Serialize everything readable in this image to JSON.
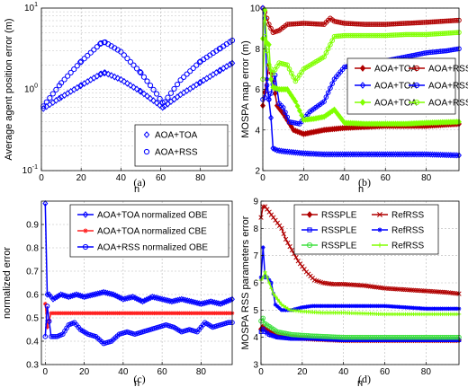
{
  "figure": {
    "captions": [
      "(a)",
      "(b)",
      "(c)",
      "(d)"
    ]
  },
  "colors": {
    "blue": "#0000ff",
    "dark_red": "#b00000",
    "red": "#ff2020",
    "light_green": "#80ff00",
    "green": "#40e040",
    "grid": "#b0b0b0"
  },
  "chart_data": [
    {
      "id": "a",
      "type": "scatter",
      "xlabel": "n",
      "ylabel": "Average agent position error (m)",
      "xlim": [
        0,
        96
      ],
      "ylim": [
        0.1,
        10
      ],
      "yscale": "log",
      "xticks": [
        0,
        20,
        40,
        60,
        80
      ],
      "yticks": [
        {
          "v": 0.1,
          "base": "10",
          "exp": "-1"
        },
        {
          "v": 1,
          "base": "10",
          "exp": "0"
        },
        {
          "v": 10,
          "base": "10",
          "exp": "1"
        }
      ],
      "grid": true,
      "legend_position": "bottom-right",
      "series": [
        {
          "name": "AOA+TOA",
          "marker": "diamond",
          "color": "#0000ff",
          "x": [
            1,
            10,
            20,
            30,
            32,
            40,
            50,
            58,
            61,
            62,
            70,
            80,
            90,
            96
          ],
          "y": [
            0.58,
            0.8,
            1.12,
            1.55,
            1.6,
            1.32,
            0.94,
            0.68,
            0.6,
            0.62,
            0.86,
            1.22,
            1.72,
            2.1
          ]
        },
        {
          "name": "AOA+RSS",
          "marker": "circle",
          "color": "#0000ff",
          "x": [
            1,
            10,
            20,
            30,
            32,
            40,
            50,
            58,
            61,
            62,
            70,
            80,
            90,
            96
          ],
          "y": [
            0.62,
            1.2,
            2.2,
            3.7,
            3.8,
            2.9,
            1.6,
            0.88,
            0.68,
            0.7,
            1.3,
            2.2,
            3.2,
            4.0
          ]
        }
      ]
    },
    {
      "id": "b",
      "type": "line",
      "xlabel": "n",
      "ylabel": "MOSPA map error (m)",
      "xlim": [
        0,
        96
      ],
      "ylim": [
        2,
        10
      ],
      "xticks": [
        0,
        20,
        40,
        60,
        80
      ],
      "yticks": [
        2,
        4,
        6,
        8,
        10
      ],
      "grid": true,
      "legend_position": "center-right",
      "legend_columns": 2,
      "series": [
        {
          "name": "AOA+TOA",
          "marker": "diamond",
          "color": "#b00000",
          "x": [
            0,
            2,
            3,
            5,
            7,
            10,
            15,
            20,
            30,
            40,
            50,
            60,
            70,
            80,
            96
          ],
          "y": [
            5.2,
            6.5,
            7.2,
            6.4,
            5.2,
            4.8,
            4.0,
            3.8,
            4.0,
            4.1,
            4.15,
            4.2,
            4.2,
            4.2,
            4.3
          ]
        },
        {
          "name": "AOA+RSS",
          "marker": "circle",
          "color": "#b00000",
          "x": [
            0,
            1,
            3,
            5,
            8,
            12,
            20,
            30,
            33,
            35,
            40,
            50,
            60,
            70,
            80,
            96
          ],
          "y": [
            10,
            9.8,
            9.2,
            8.8,
            8.9,
            9.2,
            9.25,
            9.2,
            9.5,
            9.35,
            9.25,
            9.2,
            9.2,
            9.25,
            9.3,
            9.4
          ]
        },
        {
          "name": "AOA+TOA",
          "marker": "diamond",
          "color": "#0000ff",
          "x": [
            0,
            1,
            2,
            3,
            4,
            5,
            7,
            10,
            15,
            20,
            30,
            40,
            50,
            60,
            70,
            80,
            96
          ],
          "y": [
            10,
            9.5,
            6.5,
            5.5,
            4.6,
            3.1,
            3.0,
            2.95,
            2.9,
            2.85,
            2.8,
            2.8,
            2.8,
            2.8,
            2.8,
            2.8,
            2.75
          ]
        },
        {
          "name": "AOA+RSS",
          "marker": "circle",
          "color": "#0000ff",
          "x": [
            0,
            1,
            2,
            3,
            4,
            6,
            8,
            10,
            13,
            18,
            23,
            30,
            35,
            40,
            50,
            60,
            70,
            80,
            90,
            96
          ],
          "y": [
            5.5,
            5.6,
            6.2,
            5.5,
            5.8,
            6.7,
            5.3,
            5.1,
            4.4,
            4.3,
            4.9,
            5.4,
            6.5,
            7.1,
            7.3,
            7.4,
            7.6,
            7.8,
            7.9,
            8.0
          ]
        },
        {
          "name": "AOA+TOA",
          "marker": "diamond",
          "color": "#80ff00",
          "x": [
            0,
            1,
            2,
            3,
            4,
            5,
            8,
            12,
            16,
            20,
            25,
            30,
            35,
            40,
            50,
            60,
            70,
            80,
            96
          ],
          "y": [
            8.5,
            9.9,
            8.3,
            8.2,
            6.5,
            6.1,
            6.0,
            6.0,
            5.4,
            4.5,
            4.55,
            4.65,
            5.0,
            4.35,
            4.3,
            4.3,
            4.3,
            4.35,
            4.4
          ]
        },
        {
          "name": "AOA+RSS",
          "marker": "circle",
          "color": "#80ff00",
          "x": [
            0,
            1,
            2,
            3,
            5,
            8,
            12,
            16,
            20,
            25,
            30,
            35,
            40,
            50,
            60,
            70,
            80,
            96
          ],
          "y": [
            6.5,
            8.6,
            7.9,
            7.2,
            6.8,
            7.3,
            7.2,
            6.4,
            7.0,
            7.3,
            7.6,
            8.6,
            8.65,
            8.65,
            8.65,
            8.7,
            8.7,
            8.8
          ]
        }
      ]
    },
    {
      "id": "c",
      "type": "line",
      "xlabel": "n",
      "ylabel": "normalized  error",
      "xlim": [
        -2,
        96
      ],
      "ylim": [
        0.3,
        1.0
      ],
      "xticks": [
        0,
        20,
        40,
        60,
        80
      ],
      "yticks": [
        0.3,
        0.4,
        0.5,
        0.6,
        0.7,
        0.8,
        0.9
      ],
      "grid": true,
      "legend_position": "top-center",
      "series": [
        {
          "name": "AOA+TOA normalized OBE",
          "marker": "diamond",
          "color": "#0000ff",
          "x": [
            0,
            1,
            2,
            4,
            8,
            12,
            16,
            20,
            25,
            30,
            35,
            40,
            45,
            50,
            55,
            60,
            65,
            70,
            75,
            80,
            85,
            90,
            96
          ],
          "y": [
            0.99,
            0.6,
            0.6,
            0.58,
            0.6,
            0.59,
            0.6,
            0.59,
            0.6,
            0.61,
            0.6,
            0.58,
            0.59,
            0.57,
            0.59,
            0.58,
            0.57,
            0.58,
            0.57,
            0.56,
            0.57,
            0.56,
            0.58
          ]
        },
        {
          "name": "AOA+TOA normalized CBE",
          "marker": "star",
          "color": "#ff2020",
          "x": [
            0,
            1,
            3,
            6,
            10,
            20,
            40,
            60,
            80,
            96
          ],
          "y": [
            0.56,
            0.46,
            0.52,
            0.52,
            0.52,
            0.52,
            0.52,
            0.52,
            0.52,
            0.52
          ]
        },
        {
          "name": "AOA+RSS normalized OBE",
          "marker": "circle",
          "color": "#0000ff",
          "x": [
            0,
            1,
            3,
            6,
            9,
            12,
            15,
            18,
            22,
            26,
            30,
            34,
            38,
            42,
            46,
            50,
            54,
            58,
            62,
            66,
            70,
            74,
            78,
            82,
            86,
            90,
            94,
            96
          ],
          "y": [
            0.42,
            0.55,
            0.42,
            0.42,
            0.43,
            0.47,
            0.48,
            0.45,
            0.43,
            0.42,
            0.39,
            0.4,
            0.43,
            0.44,
            0.43,
            0.44,
            0.45,
            0.46,
            0.47,
            0.46,
            0.44,
            0.45,
            0.44,
            0.48,
            0.46,
            0.47,
            0.48,
            0.48
          ]
        }
      ]
    },
    {
      "id": "d",
      "type": "line",
      "xlabel": "n",
      "ylabel": "MOSPA RSS parameters error",
      "xlim": [
        0,
        96
      ],
      "ylim": [
        3,
        9
      ],
      "xticks": [
        0,
        20,
        40,
        60,
        80
      ],
      "yticks": [
        3,
        4,
        5,
        6,
        7,
        8,
        9
      ],
      "grid": true,
      "legend_position": "top-right",
      "legend_columns": 2,
      "series": [
        {
          "name": "RSSPLE",
          "marker": "diamond",
          "color": "#b00000",
          "x": [
            0,
            1,
            2,
            4,
            8,
            15,
            25,
            40,
            60,
            80,
            96
          ],
          "y": [
            4.3,
            4.4,
            4.3,
            4.2,
            4.1,
            4.0,
            3.95,
            3.9,
            3.9,
            3.9,
            3.9
          ]
        },
        {
          "name": "RefRSS",
          "marker": "x",
          "color": "#b00000",
          "x": [
            0,
            1,
            2,
            4,
            6,
            8,
            10,
            12,
            15,
            18,
            22,
            26,
            30,
            35,
            40,
            50,
            60,
            70,
            80,
            90,
            96
          ],
          "y": [
            8.4,
            8.8,
            8.8,
            8.6,
            8.4,
            8.2,
            8.0,
            7.6,
            7.2,
            6.8,
            6.4,
            6.1,
            6.0,
            5.95,
            5.95,
            5.9,
            5.8,
            5.75,
            5.7,
            5.65,
            5.6
          ]
        },
        {
          "name": "RSSPLE",
          "marker": "square",
          "color": "#0000ff",
          "x": [
            0,
            1,
            2,
            4,
            8,
            15,
            25,
            40,
            60,
            80,
            96
          ],
          "y": [
            4.2,
            4.3,
            4.2,
            4.1,
            4.0,
            3.95,
            3.95,
            3.9,
            3.9,
            3.9,
            3.9
          ]
        },
        {
          "name": "RefRSS",
          "marker": "star",
          "color": "#0000ff",
          "x": [
            0,
            1,
            2,
            3,
            5,
            7,
            10,
            15,
            20,
            25,
            30,
            40,
            50,
            60,
            70,
            80,
            96
          ],
          "y": [
            6.2,
            7.3,
            6.2,
            6.2,
            6.0,
            5.2,
            5.0,
            5.0,
            5.1,
            5.15,
            5.15,
            5.15,
            5.15,
            5.15,
            5.1,
            5.05,
            5.05
          ]
        },
        {
          "name": "RSSPLE",
          "marker": "circle",
          "color": "#40e040",
          "x": [
            0,
            1,
            2,
            4,
            8,
            15,
            25,
            40,
            60,
            80,
            96
          ],
          "y": [
            4.6,
            4.7,
            4.5,
            4.4,
            4.2,
            4.1,
            4.05,
            4.0,
            4.0,
            4.0,
            4.0
          ]
        },
        {
          "name": "RefRSS",
          "marker": "plus",
          "color": "#80ff00",
          "x": [
            0,
            1,
            2,
            4,
            6,
            8,
            10,
            14,
            20,
            30,
            40,
            60,
            80,
            96
          ],
          "y": [
            6.1,
            6.2,
            6.4,
            6.0,
            5.6,
            5.4,
            5.2,
            5.0,
            4.95,
            4.9,
            4.9,
            4.85,
            4.85,
            4.85
          ]
        }
      ]
    }
  ]
}
